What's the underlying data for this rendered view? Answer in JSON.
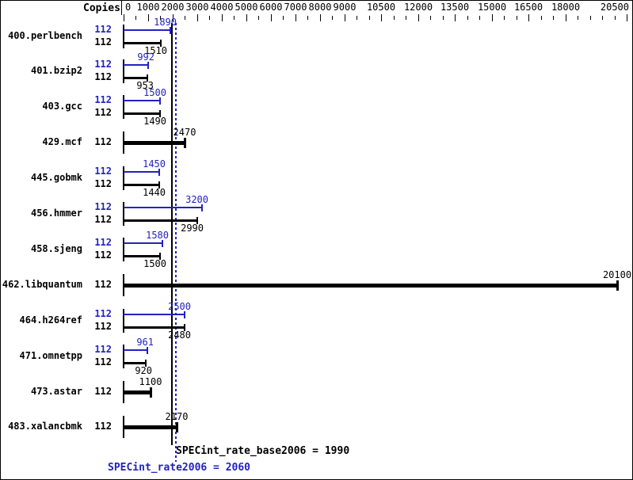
{
  "header": {
    "copies_label": "Copies"
  },
  "summary": {
    "base_text": "SPECint_rate_base2006 = 1990",
    "peak_text": "SPECint_rate2006 = 2060"
  },
  "chart_data": {
    "type": "bar",
    "orientation": "horizontal",
    "x_axis": {
      "min": 0,
      "max": 20500,
      "labeled_ticks": [
        0,
        1000,
        2000,
        3000,
        4000,
        5000,
        6000,
        7000,
        8000,
        9000,
        10500,
        12000,
        13500,
        15000,
        16500,
        18000,
        20500
      ],
      "minor_tick_step": 500
    },
    "copies_column_header": "Copies",
    "benchmarks": [
      {
        "name": "400.perlbench",
        "copies": 112,
        "peak": 1890,
        "base": 1510
      },
      {
        "name": "401.bzip2",
        "copies": 112,
        "peak": 992,
        "base": 953
      },
      {
        "name": "403.gcc",
        "copies": 112,
        "peak": 1500,
        "base": 1490
      },
      {
        "name": "429.mcf",
        "copies": 112,
        "peak": null,
        "base": 2470
      },
      {
        "name": "445.gobmk",
        "copies": 112,
        "peak": 1450,
        "base": 1440
      },
      {
        "name": "456.hmmer",
        "copies": 112,
        "peak": 3200,
        "base": 2990
      },
      {
        "name": "458.sjeng",
        "copies": 112,
        "peak": 1580,
        "base": 1500
      },
      {
        "name": "462.libquantum",
        "copies": 112,
        "peak": null,
        "base": 20100
      },
      {
        "name": "464.h264ref",
        "copies": 112,
        "peak": 2500,
        "base": 2480
      },
      {
        "name": "471.omnetpp",
        "copies": 112,
        "peak": 961,
        "base": 920
      },
      {
        "name": "473.astar",
        "copies": 112,
        "peak": null,
        "base": 1100
      },
      {
        "name": "483.xalancbmk",
        "copies": 112,
        "peak": null,
        "base": 2170
      }
    ],
    "reference_lines": [
      {
        "name": "SPECint_rate_base2006",
        "value": 1990,
        "color": "#000000",
        "style": "solid"
      },
      {
        "name": "SPECint_rate2006",
        "value": 2060,
        "color": "#2222c0",
        "style": "dotted"
      }
    ],
    "colors": {
      "peak": "#2222c0",
      "base": "#000000",
      "background": "#ffffff"
    },
    "legend_position": "bottom"
  }
}
